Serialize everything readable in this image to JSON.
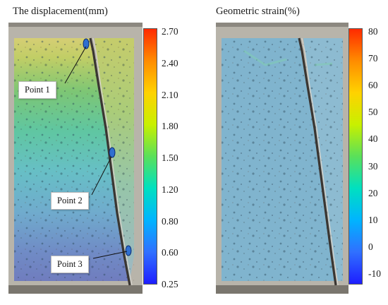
{
  "left_panel": {
    "title": "The displacement(mm)",
    "colorbar": {
      "ticks": [
        "2.70",
        "2.40",
        "2.10",
        "1.80",
        "1.50",
        "1.20",
        "0.80",
        "0.60",
        "0.25"
      ],
      "colors": [
        "#ff2a00",
        "#ff8c00",
        "#ffd200",
        "#c8f000",
        "#5ae05a",
        "#00e0c0",
        "#00b4ff",
        "#3070ff",
        "#1e1eff"
      ]
    },
    "points": [
      {
        "label": "Point 1"
      },
      {
        "label": "Point 2"
      },
      {
        "label": "Point 3"
      }
    ]
  },
  "right_panel": {
    "title": "Geometric strain(%)",
    "colorbar": {
      "ticks": [
        "80",
        "70",
        "60",
        "50",
        "40",
        "30",
        "20",
        "10",
        "0",
        "-10"
      ],
      "colors": [
        "#ff2a00",
        "#ff8c00",
        "#ffd200",
        "#c8f000",
        "#5ae05a",
        "#00e0c0",
        "#00b4ff",
        "#3070ff",
        "#1e1eff"
      ]
    }
  }
}
